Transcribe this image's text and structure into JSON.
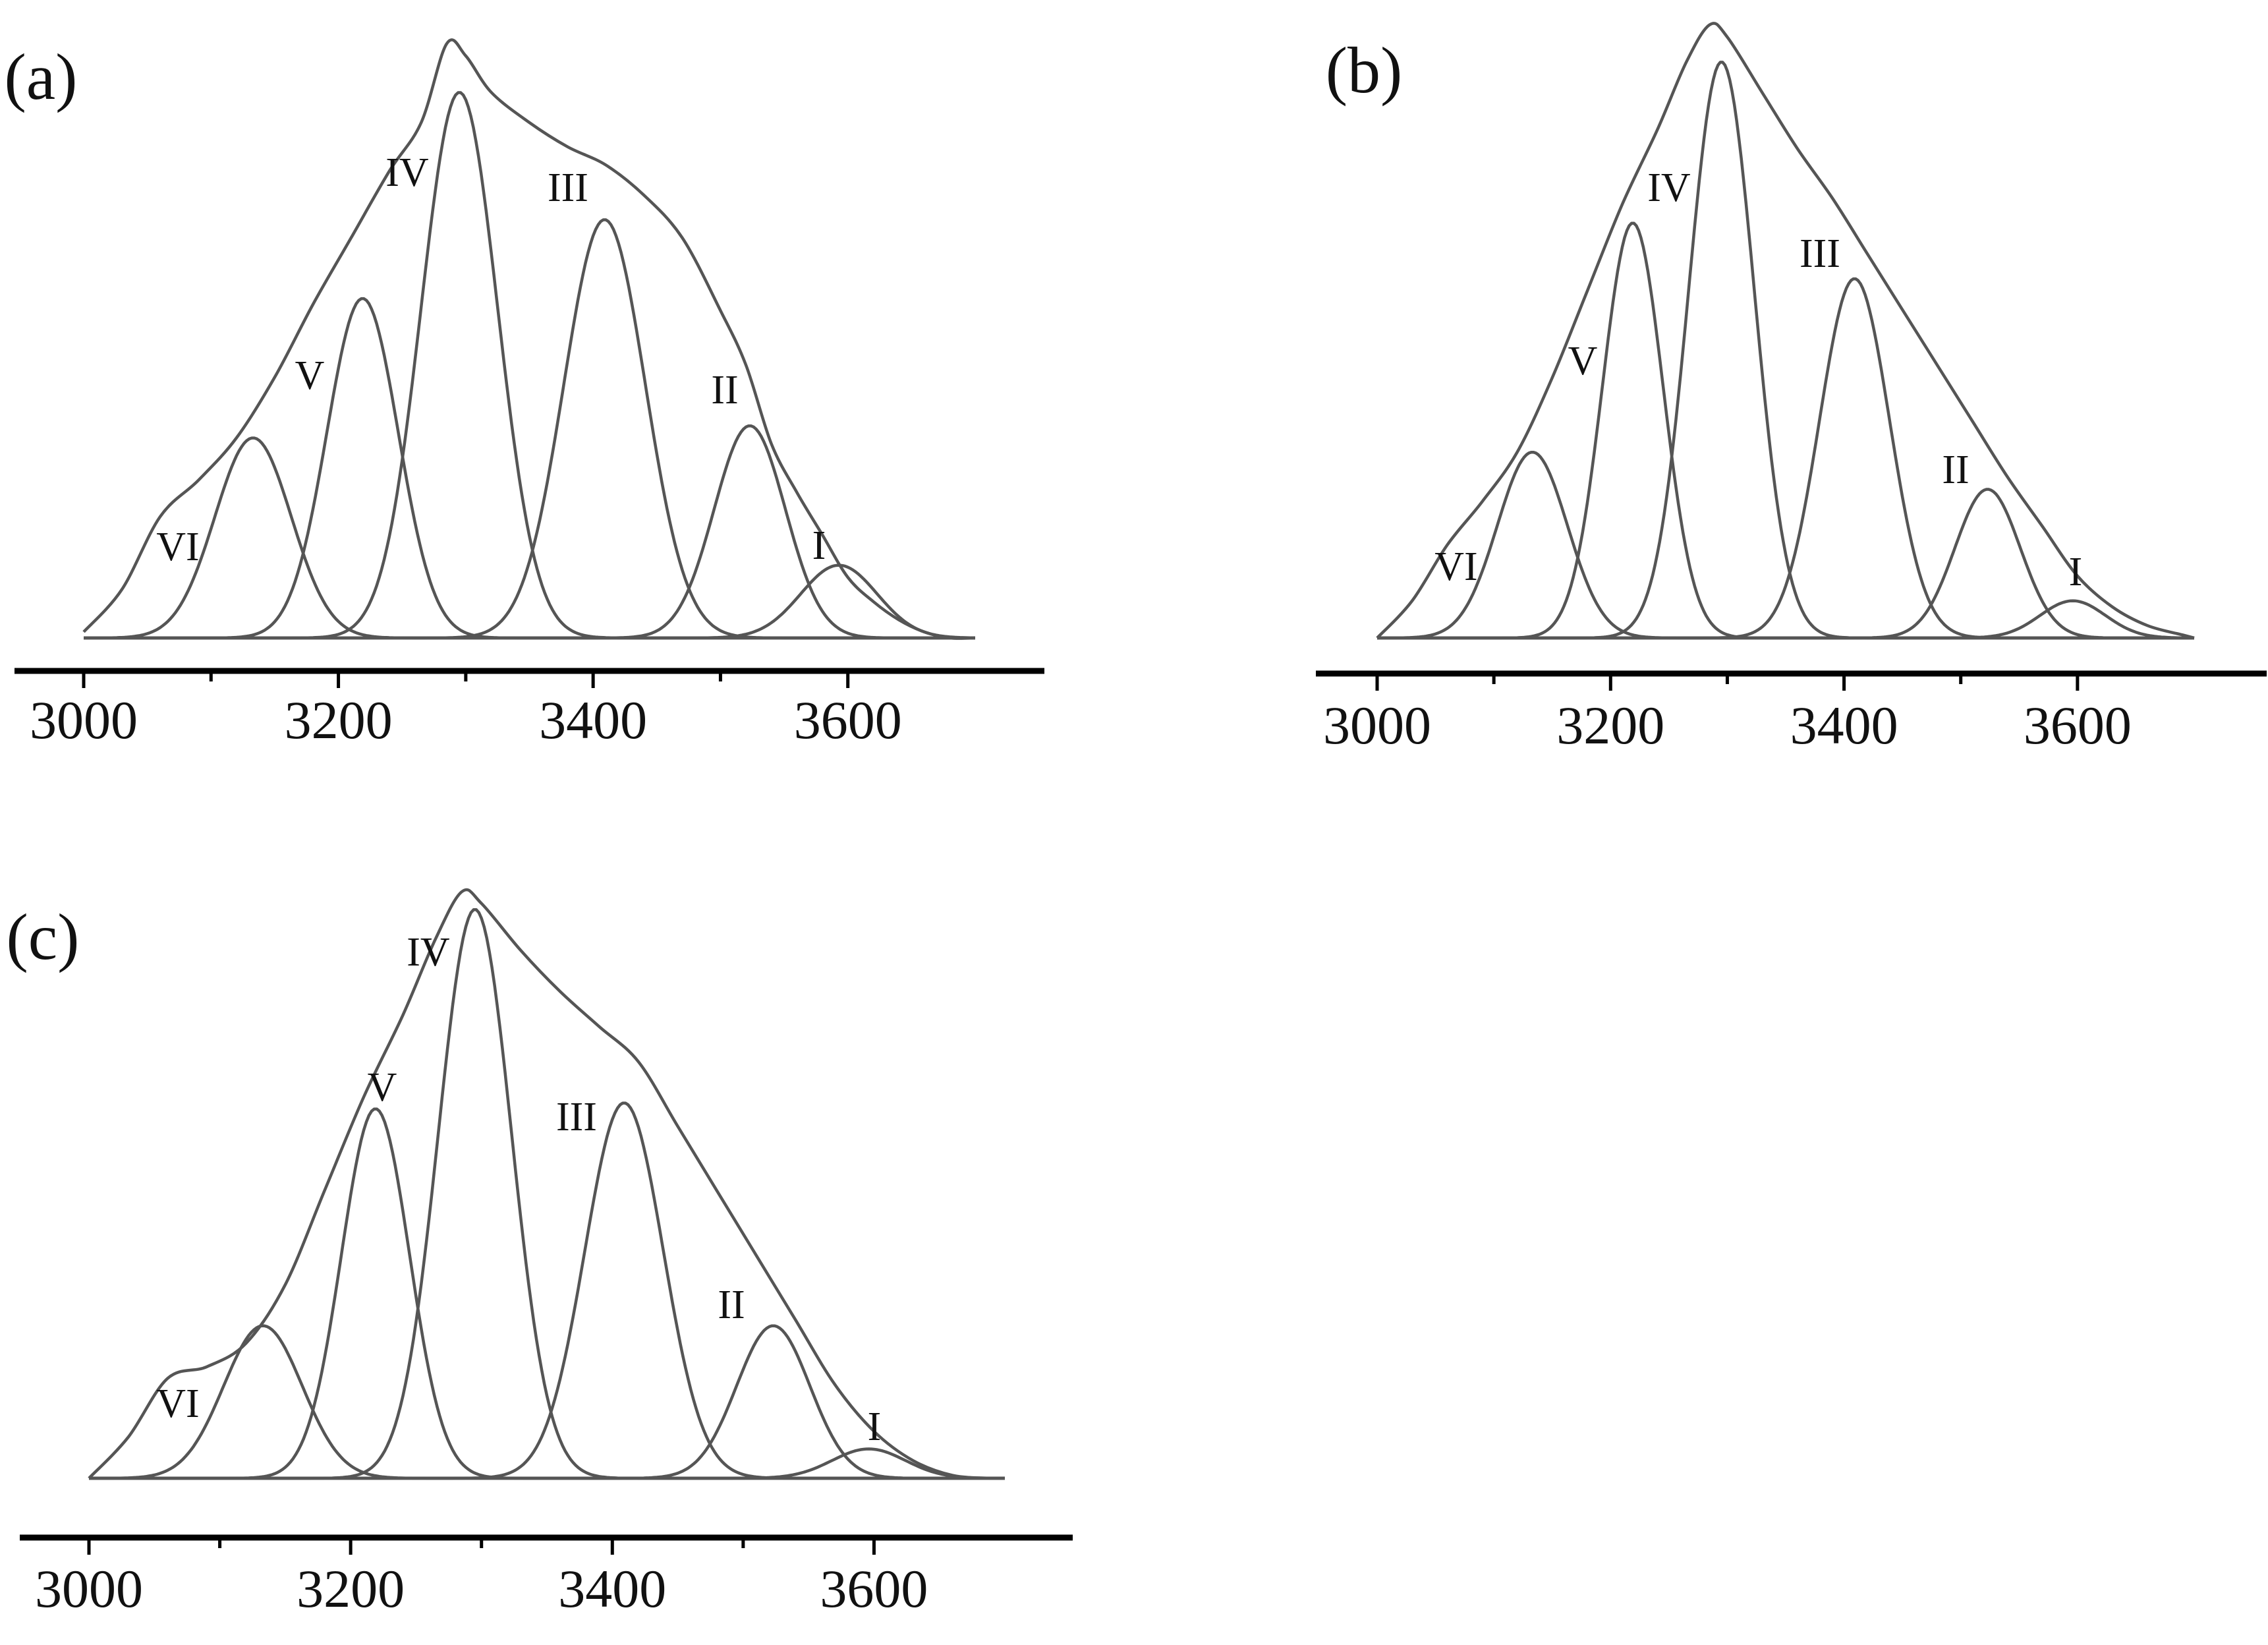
{
  "colors": {
    "curve": "#555555",
    "axis": "#000000",
    "text": "#111111",
    "background": "#ffffff"
  },
  "chart_data": [
    {
      "type": "line",
      "panel_label": "(a)",
      "xlabel": "",
      "ylabel": "",
      "xlim": [
        2980,
        3750
      ],
      "ylim": [
        0,
        1
      ],
      "xticks": [
        3000,
        3200,
        3400,
        3600
      ],
      "minor_xticks": [
        3100,
        3300,
        3500
      ],
      "envelope_points": [
        [
          3000,
          0.01
        ],
        [
          3030,
          0.08
        ],
        [
          3060,
          0.2
        ],
        [
          3090,
          0.26
        ],
        [
          3120,
          0.33
        ],
        [
          3150,
          0.43
        ],
        [
          3180,
          0.55
        ],
        [
          3210,
          0.66
        ],
        [
          3240,
          0.77
        ],
        [
          3265,
          0.85
        ],
        [
          3285,
          0.98
        ],
        [
          3300,
          0.96
        ],
        [
          3320,
          0.9
        ],
        [
          3350,
          0.85
        ],
        [
          3380,
          0.81
        ],
        [
          3410,
          0.78
        ],
        [
          3440,
          0.73
        ],
        [
          3470,
          0.66
        ],
        [
          3500,
          0.54
        ],
        [
          3520,
          0.45
        ],
        [
          3540,
          0.32
        ],
        [
          3560,
          0.24
        ],
        [
          3580,
          0.17
        ],
        [
          3600,
          0.1
        ],
        [
          3620,
          0.06
        ],
        [
          3640,
          0.03
        ],
        [
          3660,
          0.01
        ],
        [
          3680,
          0.0
        ],
        [
          3700,
          0.0
        ]
      ],
      "series": [
        {
          "name": "I",
          "center": 3593,
          "height": 0.12,
          "sigma": 30
        },
        {
          "name": "II",
          "center": 3523,
          "height": 0.35,
          "sigma": 28
        },
        {
          "name": "III",
          "center": 3409,
          "height": 0.69,
          "sigma": 32
        },
        {
          "name": "IV",
          "center": 3295,
          "height": 0.9,
          "sigma": 30
        },
        {
          "name": "V",
          "center": 3219,
          "height": 0.56,
          "sigma": 28
        },
        {
          "name": "VI",
          "center": 3133,
          "height": 0.33,
          "sigma": 30
        }
      ],
      "peak_labels": [
        "I",
        "II",
        "III",
        "IV",
        "V",
        "VI"
      ]
    },
    {
      "type": "line",
      "panel_label": "(b)",
      "xlabel": "",
      "ylabel": "",
      "xlim": [
        2980,
        3750
      ],
      "ylim": [
        0,
        1
      ],
      "xticks": [
        3000,
        3200,
        3400,
        3600
      ],
      "minor_xticks": [
        3100,
        3300,
        3500
      ],
      "envelope_points": [
        [
          3000,
          0.0
        ],
        [
          3030,
          0.06
        ],
        [
          3060,
          0.15
        ],
        [
          3090,
          0.22
        ],
        [
          3120,
          0.3
        ],
        [
          3150,
          0.42
        ],
        [
          3180,
          0.56
        ],
        [
          3210,
          0.7
        ],
        [
          3240,
          0.82
        ],
        [
          3265,
          0.93
        ],
        [
          3285,
          0.99
        ],
        [
          3300,
          0.97
        ],
        [
          3330,
          0.88
        ],
        [
          3360,
          0.79
        ],
        [
          3390,
          0.71
        ],
        [
          3420,
          0.62
        ],
        [
          3450,
          0.53
        ],
        [
          3480,
          0.44
        ],
        [
          3510,
          0.35
        ],
        [
          3540,
          0.26
        ],
        [
          3570,
          0.18
        ],
        [
          3600,
          0.1
        ],
        [
          3630,
          0.05
        ],
        [
          3660,
          0.02
        ],
        [
          3690,
          0.005
        ],
        [
          3700,
          0.0
        ]
      ],
      "series": [
        {
          "name": "I",
          "center": 3596,
          "height": 0.06,
          "sigma": 28
        },
        {
          "name": "II",
          "center": 3523,
          "height": 0.24,
          "sigma": 28
        },
        {
          "name": "III",
          "center": 3409,
          "height": 0.58,
          "sigma": 30
        },
        {
          "name": "IV",
          "center": 3295,
          "height": 0.93,
          "sigma": 28
        },
        {
          "name": "V",
          "center": 3219,
          "height": 0.67,
          "sigma": 26
        },
        {
          "name": "VI",
          "center": 3133,
          "height": 0.3,
          "sigma": 30
        }
      ],
      "peak_labels": [
        "I",
        "II",
        "III",
        "IV",
        "V",
        "VI"
      ]
    },
    {
      "type": "line",
      "panel_label": "(c)",
      "xlabel": "",
      "ylabel": "",
      "xlim": [
        2980,
        3750
      ],
      "ylim": [
        0,
        1
      ],
      "xticks": [
        3000,
        3200,
        3400,
        3600
      ],
      "minor_xticks": [
        3100,
        3300,
        3500
      ],
      "envelope_points": [
        [
          3000,
          0.0
        ],
        [
          3030,
          0.07
        ],
        [
          3060,
          0.17
        ],
        [
          3090,
          0.19
        ],
        [
          3120,
          0.23
        ],
        [
          3150,
          0.33
        ],
        [
          3180,
          0.49
        ],
        [
          3210,
          0.65
        ],
        [
          3240,
          0.79
        ],
        [
          3265,
          0.92
        ],
        [
          3285,
          1.0
        ],
        [
          3300,
          0.98
        ],
        [
          3330,
          0.9
        ],
        [
          3360,
          0.83
        ],
        [
          3390,
          0.77
        ],
        [
          3420,
          0.71
        ],
        [
          3450,
          0.6
        ],
        [
          3480,
          0.49
        ],
        [
          3510,
          0.38
        ],
        [
          3540,
          0.27
        ],
        [
          3570,
          0.16
        ],
        [
          3600,
          0.08
        ],
        [
          3630,
          0.03
        ],
        [
          3660,
          0.005
        ],
        [
          3690,
          0.0
        ],
        [
          3700,
          0.0
        ]
      ],
      "series": [
        {
          "name": "I",
          "center": 3596,
          "height": 0.05,
          "sigma": 28
        },
        {
          "name": "II",
          "center": 3523,
          "height": 0.26,
          "sigma": 28
        },
        {
          "name": "III",
          "center": 3409,
          "height": 0.64,
          "sigma": 30
        },
        {
          "name": "IV",
          "center": 3295,
          "height": 0.97,
          "sigma": 28
        },
        {
          "name": "V",
          "center": 3219,
          "height": 0.63,
          "sigma": 26
        },
        {
          "name": "VI",
          "center": 3133,
          "height": 0.26,
          "sigma": 30
        }
      ],
      "peak_labels": [
        "I",
        "II",
        "III",
        "IV",
        "V",
        "VI"
      ]
    }
  ]
}
